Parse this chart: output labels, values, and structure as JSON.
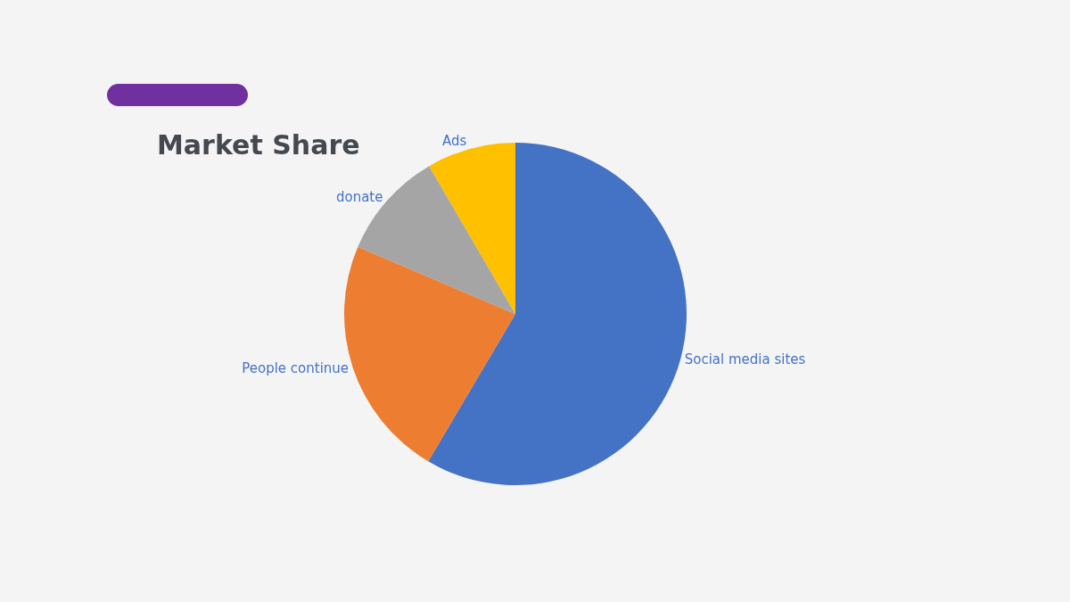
{
  "chart_data": {
    "type": "pie",
    "title": "Market Share",
    "categories": [
      "Social media sites",
      "People continue",
      "donate",
      "Ads"
    ],
    "values": [
      58.5,
      22.9,
      10.2,
      8.4
    ],
    "colors": [
      "#4472c4",
      "#ed7d31",
      "#a5a5a5",
      "#ffc000"
    ],
    "legend": false
  }
}
